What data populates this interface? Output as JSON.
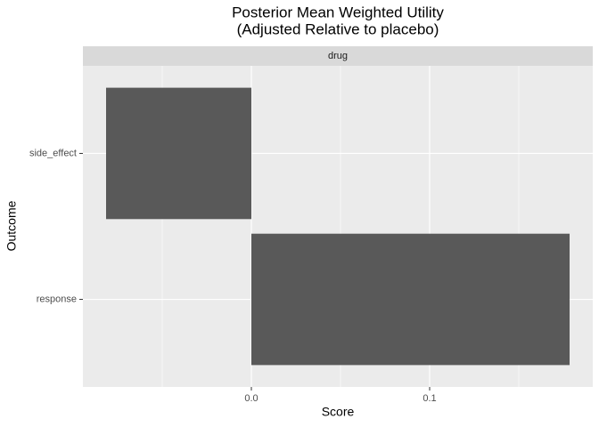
{
  "chart_data": {
    "type": "bar",
    "orientation": "horizontal",
    "title": [
      "Posterior Mean Weighted Utility",
      "(Adjusted Relative to placebo)"
    ],
    "facet": "drug",
    "x_label": "Score",
    "y_label": "Outcome",
    "categories": [
      "response",
      "side_effect"
    ],
    "values": [
      0.1785,
      -0.0815
    ],
    "color": "#595959",
    "xlim": [
      -0.0945,
      0.1915
    ],
    "xticks": [
      {
        "value": 0,
        "label": "0.0"
      },
      0.1
    ],
    "minor_grid": [
      -0.05,
      0.05,
      0.15
    ],
    "grid": true
  }
}
